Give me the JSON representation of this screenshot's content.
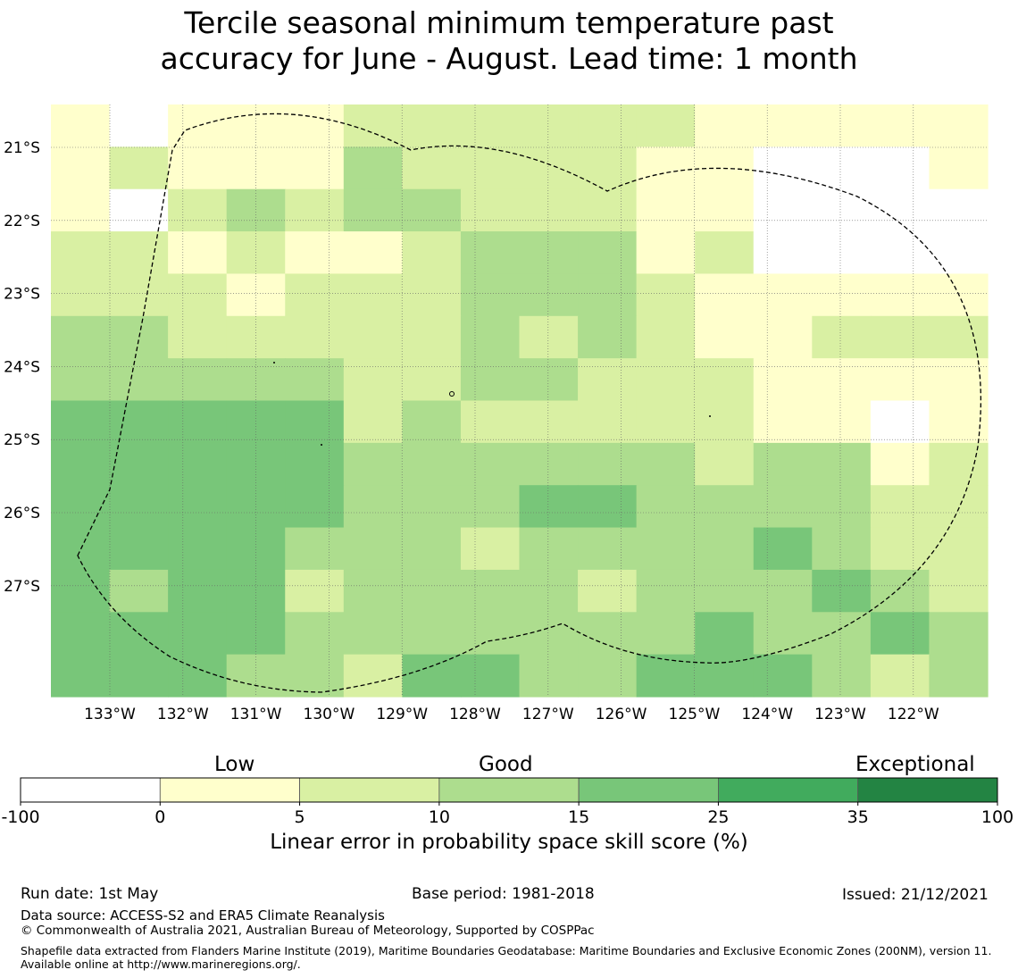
{
  "title": {
    "line1": "Tercile seasonal minimum temperature past",
    "line2": "accuracy for June - August. Lead time: 1 month"
  },
  "map": {
    "lon_labels": [
      "133°W",
      "132°W",
      "131°W",
      "130°W",
      "129°W",
      "128°W",
      "127°W",
      "126°W",
      "125°W",
      "124°W",
      "123°W",
      "122°W"
    ],
    "lat_labels": [
      "21°S",
      "22°S",
      "23°S",
      "24°S",
      "25°S",
      "26°S",
      "27°S"
    ],
    "grid_values_note": "class index per cell: 0=-100..0, 1=0..5, 2=5..10, 3=10..15, 4=15..25",
    "grid": [
      [
        1,
        0,
        1,
        1,
        1,
        2,
        2,
        2,
        2,
        2,
        2,
        1,
        1,
        1,
        1,
        1
      ],
      [
        1,
        2,
        1,
        1,
        1,
        3,
        2,
        2,
        2,
        2,
        1,
        1,
        0,
        0,
        0,
        1
      ],
      [
        1,
        0,
        2,
        3,
        2,
        3,
        3,
        2,
        2,
        2,
        1,
        1,
        0,
        0,
        0,
        0
      ],
      [
        2,
        2,
        1,
        2,
        1,
        1,
        2,
        3,
        3,
        3,
        1,
        2,
        0,
        0,
        0,
        0
      ],
      [
        2,
        2,
        2,
        1,
        2,
        2,
        2,
        3,
        3,
        3,
        2,
        1,
        1,
        1,
        1,
        1
      ],
      [
        3,
        3,
        2,
        2,
        2,
        2,
        2,
        3,
        2,
        3,
        2,
        1,
        1,
        2,
        2,
        2
      ],
      [
        3,
        3,
        3,
        3,
        3,
        2,
        2,
        3,
        3,
        2,
        2,
        2,
        1,
        1,
        1,
        1
      ],
      [
        4,
        4,
        4,
        4,
        4,
        2,
        3,
        2,
        2,
        2,
        2,
        2,
        1,
        1,
        0,
        1
      ],
      [
        4,
        4,
        4,
        4,
        4,
        3,
        3,
        3,
        3,
        3,
        3,
        2,
        3,
        3,
        1,
        2
      ],
      [
        4,
        4,
        4,
        4,
        4,
        3,
        3,
        3,
        4,
        4,
        3,
        3,
        3,
        3,
        2,
        2
      ],
      [
        4,
        4,
        4,
        4,
        3,
        3,
        3,
        2,
        3,
        3,
        3,
        3,
        4,
        3,
        2,
        2
      ],
      [
        4,
        3,
        4,
        4,
        2,
        3,
        3,
        3,
        3,
        2,
        3,
        3,
        3,
        4,
        3,
        2
      ],
      [
        4,
        4,
        4,
        4,
        3,
        3,
        3,
        3,
        3,
        3,
        3,
        4,
        3,
        3,
        4,
        3
      ],
      [
        4,
        4,
        4,
        3,
        3,
        2,
        4,
        4,
        3,
        3,
        4,
        4,
        4,
        3,
        2,
        3
      ]
    ]
  },
  "colorbar": {
    "category_labels": [
      "Low",
      "Good",
      "Exceptional"
    ],
    "ticks": [
      "-100",
      "0",
      "5",
      "10",
      "15",
      "25",
      "35",
      "100"
    ],
    "colors": [
      "#ffffff",
      "#ffffcc",
      "#d9f0a3",
      "#addd8e",
      "#78c679",
      "#41ab5d",
      "#238443"
    ],
    "title": "Linear error in probability space skill score (%)"
  },
  "footer": {
    "run_date": "Run date: 1st May",
    "base_period": "Base period: 1981-2018",
    "issued": "Issued: 21/12/2021",
    "data_source": "Data source: ACCESS-S2 and ERA5 Climate Reanalysis",
    "copyright": "© Commonwealth of Australia 2021, Australian Bureau of Meteorology, Supported by COSPPac",
    "shapefile": "Shapefile data extracted from Flanders Marine Institute (2019), Maritime Boundaries Geodatabase: Maritime Boundaries and Exclusive Economic Zones (200NM), version 11. Available online at http://www.marineregions.org/."
  }
}
